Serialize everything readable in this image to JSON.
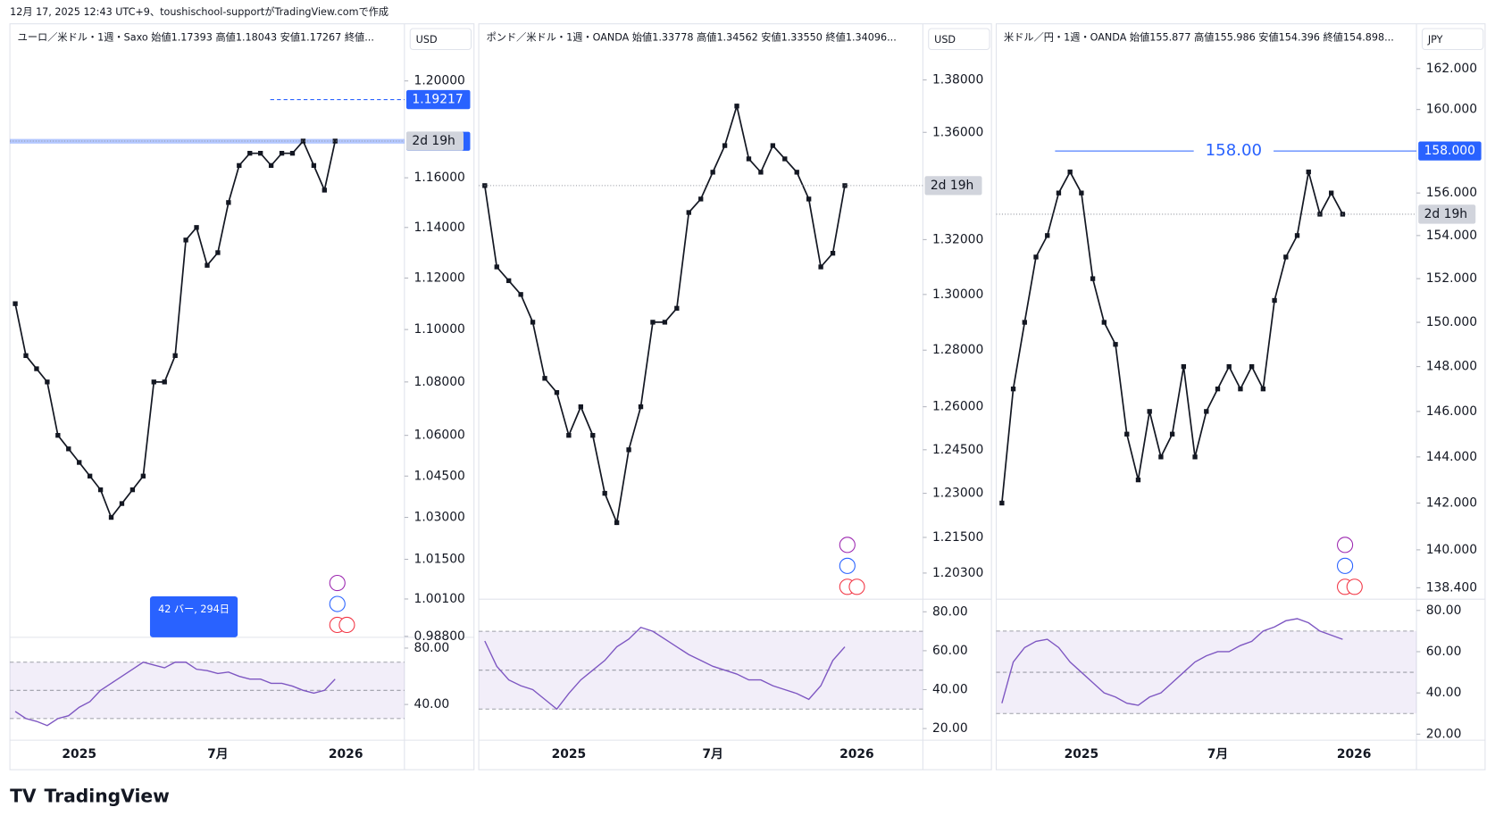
{
  "header": "12月 17, 2025 12:43 UTC+9、toushischool-supportがTradingView.comで作成",
  "brand": "TradingView",
  "chart_data": [
    {
      "type": "line",
      "title": "ユーロ／米ドル・1週・Saxo  始値1.17393  高値1.18043  安値1.17267  終値...",
      "currency": "USD",
      "log_scale": true,
      "color": "#131722",
      "categories": [
        null,
        null,
        null,
        null,
        null,
        null,
        "2025",
        null,
        null,
        null,
        null,
        null,
        null,
        null,
        null,
        null,
        null,
        null,
        null,
        "7月",
        null,
        null,
        null,
        null,
        null,
        null,
        null,
        null,
        null,
        null,
        null,
        "2026",
        null,
        null,
        null,
        null,
        null
      ],
      "values": [
        1.11,
        1.09,
        1.085,
        1.08,
        1.06,
        1.055,
        1.05,
        1.045,
        1.04,
        1.03,
        1.035,
        1.04,
        1.045,
        1.08,
        1.08,
        1.09,
        1.135,
        1.14,
        1.125,
        1.13,
        1.15,
        1.165,
        1.17,
        1.17,
        1.165,
        1.17,
        1.17,
        1.175,
        1.165,
        1.155,
        1.175,
        null,
        null,
        null,
        null,
        null,
        null
      ],
      "ylim": [
        0.988,
        1.223
      ],
      "yticks": [
        {
          "value": 1.2,
          "label": "1.20000"
        },
        {
          "value": 1.16,
          "label": "1.16000"
        },
        {
          "value": 1.14,
          "label": "1.14000"
        },
        {
          "value": 1.12,
          "label": "1.12000"
        },
        {
          "value": 1.1,
          "label": "1.10000"
        },
        {
          "value": 1.08,
          "label": "1.08000"
        },
        {
          "value": 1.06,
          "label": "1.06000"
        },
        {
          "value": 1.045,
          "label": "1.04500"
        },
        {
          "value": 1.03,
          "label": "1.03000"
        },
        {
          "value": 1.015,
          "label": "1.01500"
        },
        {
          "value": 1.001,
          "label": "1.00100"
        },
        {
          "value": 0.988,
          "label": "0.98800"
        }
      ],
      "price_labels": [
        {
          "value": 1.19217,
          "color": "#2962ff",
          "line": "dashed"
        },
        {
          "value": 1.17492,
          "color": "#2962ff",
          "line": "band"
        }
      ],
      "countdown": "2d 19h",
      "measure_label": "42 バー, 294日",
      "rsi": {
        "color": "#7e57c2",
        "ylim": [
          16,
          87
        ],
        "bands": [
          30,
          50,
          70
        ],
        "yticks": [
          {
            "value": 80,
            "label": "80.00"
          },
          {
            "value": 40,
            "label": "40.00"
          }
        ],
        "values": [
          35,
          30,
          28,
          25,
          30,
          32,
          38,
          42,
          50,
          55,
          60,
          65,
          70,
          68,
          66,
          70,
          70,
          65,
          64,
          62,
          63,
          60,
          58,
          58,
          55,
          55,
          53,
          50,
          48,
          50,
          58,
          null,
          null,
          null,
          null,
          null,
          null
        ]
      }
    },
    {
      "type": "line",
      "title": "ポンド／米ドル・1週・OANDA  始値1.33778  高値1.34562  安値1.33550  終値1.34096...",
      "currency": "USD",
      "log_scale": true,
      "color": "#131722",
      "categories": [
        null,
        null,
        null,
        null,
        null,
        null,
        null,
        "2025",
        null,
        null,
        null,
        null,
        null,
        null,
        null,
        null,
        null,
        null,
        null,
        "7月",
        null,
        null,
        null,
        null,
        null,
        null,
        null,
        null,
        null,
        null,
        null,
        "2026",
        null,
        null,
        null,
        null,
        null
      ],
      "values": [
        1.34,
        1.31,
        1.305,
        1.3,
        1.29,
        1.27,
        1.265,
        1.25,
        1.26,
        1.25,
        1.23,
        1.22,
        1.245,
        1.26,
        1.29,
        1.29,
        1.295,
        1.33,
        1.335,
        1.345,
        1.355,
        1.37,
        1.35,
        1.345,
        1.355,
        1.35,
        1.345,
        1.335,
        1.31,
        1.315,
        1.34,
        null,
        null,
        null,
        null,
        null,
        null
      ],
      "ylim": [
        1.1946,
        1.4006
      ],
      "yticks": [
        {
          "value": 1.38,
          "label": "1.38000"
        },
        {
          "value": 1.36,
          "label": "1.36000"
        },
        {
          "value": 1.32,
          "label": "1.32000"
        },
        {
          "value": 1.3,
          "label": "1.30000"
        },
        {
          "value": 1.28,
          "label": "1.28000"
        },
        {
          "value": 1.26,
          "label": "1.26000"
        },
        {
          "value": 1.245,
          "label": "1.24500"
        },
        {
          "value": 1.23,
          "label": "1.23000"
        },
        {
          "value": 1.215,
          "label": "1.21500"
        },
        {
          "value": 1.203,
          "label": "1.20300"
        }
      ],
      "price_labels": [],
      "countdown": "2d 19h",
      "rsi": {
        "color": "#7e57c2",
        "ylim": [
          15,
          86
        ],
        "bands": [
          30,
          50,
          70
        ],
        "yticks": [
          {
            "value": 80,
            "label": "80.00"
          },
          {
            "value": 60,
            "label": "60.00"
          },
          {
            "value": 40,
            "label": "40.00"
          },
          {
            "value": 20,
            "label": "20.00"
          }
        ],
        "values": [
          65,
          52,
          45,
          42,
          40,
          35,
          30,
          38,
          45,
          50,
          55,
          62,
          66,
          72,
          70,
          66,
          62,
          58,
          55,
          52,
          50,
          48,
          45,
          45,
          42,
          40,
          38,
          35,
          42,
          55,
          62,
          null,
          null,
          null,
          null,
          null,
          null
        ]
      }
    },
    {
      "type": "line",
      "title": "米ドル／円・1週・OANDA  始値155.877  高値155.986  安値154.396  終値154.898...",
      "currency": "JPY",
      "log_scale": true,
      "color": "#131722",
      "categories": [
        null,
        null,
        null,
        null,
        null,
        null,
        null,
        "2025",
        null,
        null,
        null,
        null,
        null,
        null,
        null,
        null,
        null,
        null,
        null,
        "7月",
        null,
        null,
        null,
        null,
        null,
        null,
        null,
        null,
        null,
        null,
        null,
        "2026",
        null,
        null,
        null,
        null,
        null
      ],
      "values": [
        142,
        147,
        150,
        153,
        154,
        156,
        157,
        156,
        152,
        150,
        149,
        145,
        143,
        146,
        144,
        145,
        148,
        144,
        146,
        147,
        148,
        147,
        148,
        147,
        151,
        153,
        154,
        157,
        155,
        156,
        155,
        null,
        null,
        null,
        null,
        null,
        null
      ],
      "ylim": [
        137.96,
        164.07
      ],
      "yticks": [
        {
          "value": 162,
          "label": "162.000"
        },
        {
          "value": 160,
          "label": "160.000"
        },
        {
          "value": 156,
          "label": "156.000"
        },
        {
          "value": 154,
          "label": "154.000"
        },
        {
          "value": 152,
          "label": "152.000"
        },
        {
          "value": 150,
          "label": "150.000"
        },
        {
          "value": 148,
          "label": "148.000"
        },
        {
          "value": 146,
          "label": "146.000"
        },
        {
          "value": 144,
          "label": "144.000"
        },
        {
          "value": 142,
          "label": "142.000"
        },
        {
          "value": 140,
          "label": "140.000"
        },
        {
          "value": 138.4,
          "label": "138.400"
        }
      ],
      "price_labels": [
        {
          "value": 158,
          "label": "158.000",
          "color": "#2962ff",
          "line": "solid",
          "annotation": "158.00"
        }
      ],
      "countdown": "2d 19h",
      "rsi": {
        "color": "#7e57c2",
        "ylim": [
          18,
          85
        ],
        "bands": [
          30,
          50,
          70
        ],
        "yticks": [
          {
            "value": 80,
            "label": "80.00"
          },
          {
            "value": 60,
            "label": "60.00"
          },
          {
            "value": 40,
            "label": "40.00"
          },
          {
            "value": 20,
            "label": "20.00"
          }
        ],
        "values": [
          35,
          55,
          62,
          65,
          66,
          62,
          55,
          50,
          45,
          40,
          38,
          35,
          34,
          38,
          40,
          45,
          50,
          55,
          58,
          60,
          60,
          63,
          65,
          70,
          72,
          75,
          76,
          74,
          70,
          68,
          66,
          null,
          null,
          null,
          null,
          null,
          null
        ]
      }
    }
  ]
}
